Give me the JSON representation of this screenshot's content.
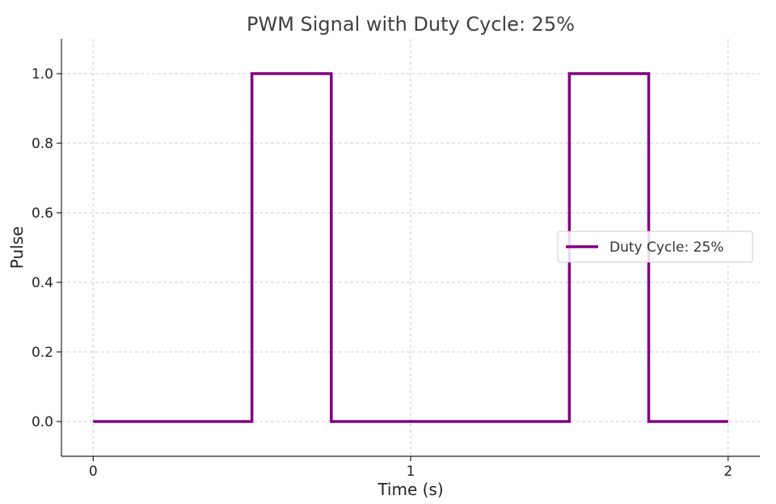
{
  "chart_data": {
    "type": "line",
    "title": "PWM Signal with Duty Cycle: 25%",
    "xlabel": "Time (s)",
    "ylabel": "Pulse",
    "xlim": [
      -0.1,
      2.1
    ],
    "ylim": [
      -0.1,
      1.1
    ],
    "xticks": [
      0,
      1,
      2
    ],
    "xtick_labels": [
      "0",
      "1",
      "2"
    ],
    "yticks": [
      0.0,
      0.2,
      0.4,
      0.6,
      0.8,
      1.0
    ],
    "ytick_labels": [
      "0.0",
      "0.2",
      "0.4",
      "0.6",
      "0.8",
      "1.0"
    ],
    "grid": true,
    "legend_position": "center-right",
    "series": [
      {
        "name": "Duty Cycle: 25%",
        "color": "#800080",
        "x": [
          0,
          0.5,
          0.5,
          0.75,
          0.75,
          1.5,
          1.5,
          1.75,
          1.75,
          2.0
        ],
        "y": [
          0,
          0,
          1,
          1,
          0,
          0,
          1,
          1,
          0,
          0
        ]
      }
    ]
  }
}
